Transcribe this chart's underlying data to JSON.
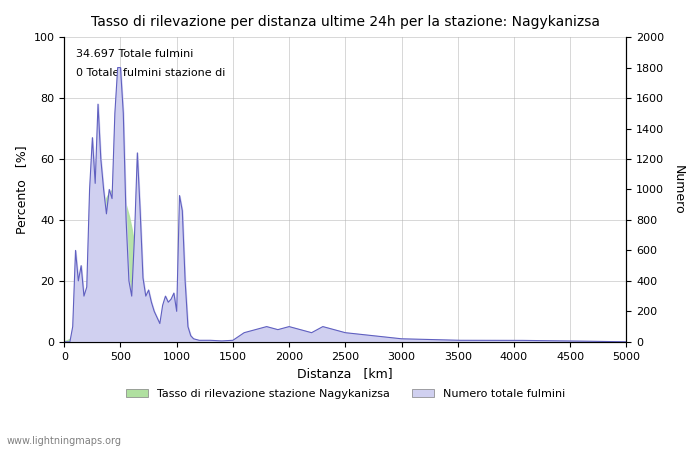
{
  "title": "Tasso di rilevazione per distanza ultime 24h per la stazione: Nagykanizsa",
  "annotation_line1": "34.697 Totale fulmini",
  "annotation_line2": "0 Totale fulmini stazione di",
  "xlabel": "Distanza   [km]",
  "ylabel_left": "Percento   [%]",
  "ylabel_right": "Numero",
  "xlim": [
    0,
    5000
  ],
  "ylim_left": [
    0,
    100
  ],
  "ylim_right": [
    0,
    2000
  ],
  "xticks": [
    0,
    500,
    1000,
    1500,
    2000,
    2500,
    3000,
    3500,
    4000,
    4500,
    5000
  ],
  "yticks_left": [
    0,
    20,
    40,
    60,
    80,
    100
  ],
  "yticks_right": [
    0,
    200,
    400,
    600,
    800,
    1000,
    1200,
    1400,
    1600,
    1800,
    2000
  ],
  "legend_green_label": "Tasso di rilevazione stazione Nagykanizsa",
  "legend_blue_label": "Numero totale fulmini",
  "watermark": "www.lightningmaps.org",
  "fill_green_color": "#b0e0a0",
  "fill_blue_color": "#d0d0f0",
  "line_color": "#6060c0",
  "background_color": "#ffffff",
  "grid_color": "#b0b0b0"
}
